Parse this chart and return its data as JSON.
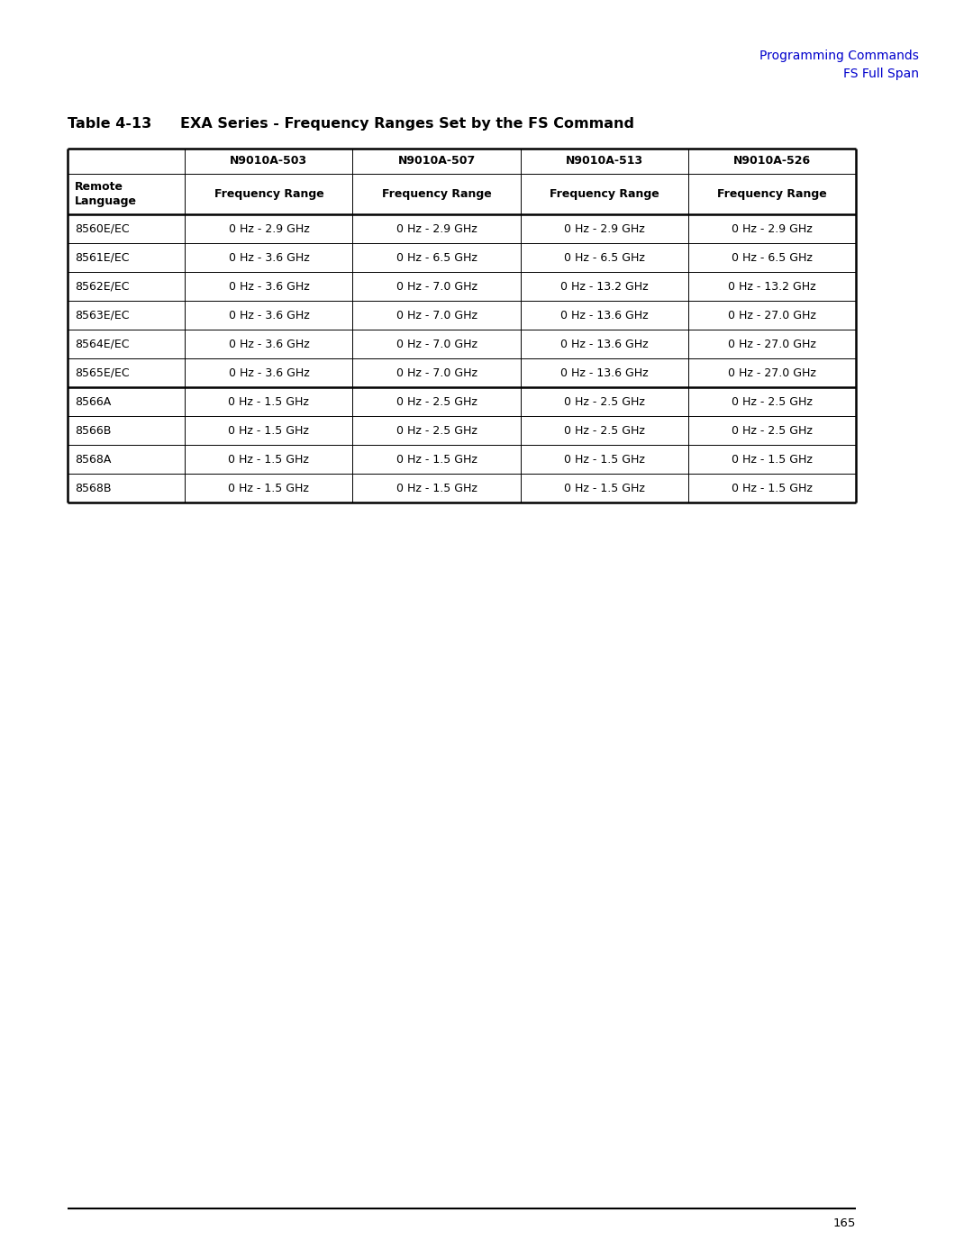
{
  "header_line1": "Programming Commands",
  "header_line2": "FS Full Span",
  "header_color": "#0000CC",
  "table_title_bold": "Table 4-13",
  "table_title_rest": "EXA Series - Frequency Ranges Set by the FS Command",
  "col_headers_row1": [
    "",
    "N9010A-503",
    "N9010A-507",
    "N9010A-513",
    "N9010A-526"
  ],
  "col_headers_row2": [
    "Remote\nLanguage",
    "Frequency Range",
    "Frequency Range",
    "Frequency Range",
    "Frequency Range"
  ],
  "rows": [
    [
      "8560E/EC",
      "0 Hz - 2.9 GHz",
      "0 Hz - 2.9 GHz",
      "0 Hz - 2.9 GHz",
      "0 Hz - 2.9 GHz"
    ],
    [
      "8561E/EC",
      "0 Hz - 3.6 GHz",
      "0 Hz - 6.5 GHz",
      "0 Hz - 6.5 GHz",
      "0 Hz - 6.5 GHz"
    ],
    [
      "8562E/EC",
      "0 Hz - 3.6 GHz",
      "0 Hz - 7.0 GHz",
      "0 Hz - 13.2 GHz",
      "0 Hz - 13.2 GHz"
    ],
    [
      "8563E/EC",
      "0 Hz - 3.6 GHz",
      "0 Hz - 7.0 GHz",
      "0 Hz - 13.6 GHz",
      "0 Hz - 27.0 GHz"
    ],
    [
      "8564E/EC",
      "0 Hz - 3.6 GHz",
      "0 Hz - 7.0 GHz",
      "0 Hz - 13.6 GHz",
      "0 Hz - 27.0 GHz"
    ],
    [
      "8565E/EC",
      "0 Hz - 3.6 GHz",
      "0 Hz - 7.0 GHz",
      "0 Hz - 13.6 GHz",
      "0 Hz - 27.0 GHz"
    ],
    [
      "8566A",
      "0 Hz - 1.5 GHz",
      "0 Hz - 2.5 GHz",
      "0 Hz - 2.5 GHz",
      "0 Hz - 2.5 GHz"
    ],
    [
      "8566B",
      "0 Hz - 1.5 GHz",
      "0 Hz - 2.5 GHz",
      "0 Hz - 2.5 GHz",
      "0 Hz - 2.5 GHz"
    ],
    [
      "8568A",
      "0 Hz - 1.5 GHz",
      "0 Hz - 1.5 GHz",
      "0 Hz - 1.5 GHz",
      "0 Hz - 1.5 GHz"
    ],
    [
      "8568B",
      "0 Hz - 1.5 GHz",
      "0 Hz - 1.5 GHz",
      "0 Hz - 1.5 GHz",
      "0 Hz - 1.5 GHz"
    ]
  ],
  "page_number": "165",
  "bg_color": "#ffffff",
  "text_color": "#000000",
  "fig_width": 10.8,
  "fig_height": 13.97,
  "dpi": 100
}
